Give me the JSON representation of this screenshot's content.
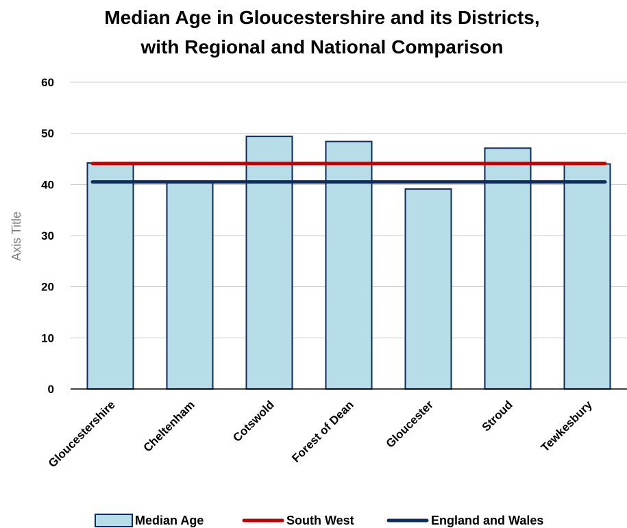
{
  "chart_data": {
    "type": "bar",
    "title_lines": [
      "Median Age in Gloucestershire and its Districts,",
      "with Regional and National Comparison"
    ],
    "xlabel": "",
    "ylabel": "Axis Title",
    "ylim": [
      0,
      60
    ],
    "yticks": [
      "0",
      "10",
      "20",
      "30",
      "40",
      "50",
      "60"
    ],
    "grid": true,
    "categories": [
      "Gloucestershire",
      "Cheltenham",
      "Cotswold",
      "Forest of Dean",
      "Gloucester",
      "Stroud",
      "Tewkesbury"
    ],
    "series": [
      {
        "name": "Median Age",
        "type": "bar",
        "color": "#b7dde8",
        "edge_color": "#0d2b5e",
        "values": [
          44.2,
          40.5,
          49.4,
          48.4,
          39.1,
          47.1,
          44.0
        ]
      },
      {
        "name": "South West",
        "type": "line",
        "color": "#c00000",
        "values": [
          44.1,
          44.1,
          44.1,
          44.1,
          44.1,
          44.1,
          44.1
        ]
      },
      {
        "name": "England and Wales",
        "type": "line",
        "color": "#0d2b5e",
        "values": [
          40.5,
          40.5,
          40.5,
          40.5,
          40.5,
          40.5,
          40.5
        ]
      }
    ],
    "legend_position": "bottom"
  }
}
